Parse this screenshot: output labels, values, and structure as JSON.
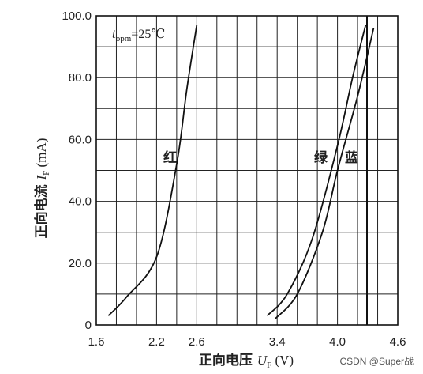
{
  "chart_data": {
    "type": "line",
    "xlabel": {
      "prefix": "正向电压 ",
      "symbol": "U",
      "sub": "F",
      "suffix": " (V)"
    },
    "ylabel": {
      "prefix": "正向电流 ",
      "symbol": "I",
      "sub": "F",
      "suffix": " (mA)"
    },
    "annotation": {
      "symbol": "t",
      "sub": "opm",
      "rest": "=25℃"
    },
    "xlim": [
      1.6,
      4.6
    ],
    "ylim": [
      0,
      100
    ],
    "x_ticks": [
      1.6,
      2.2,
      2.6,
      3.4,
      4.0,
      4.6
    ],
    "x_tick_labels": [
      "1.6",
      "2.2",
      "2.6",
      "3.4",
      "4.0",
      "4.6"
    ],
    "y_ticks": [
      0,
      20,
      40,
      60,
      80,
      100
    ],
    "y_tick_labels": [
      "0",
      "20.0",
      "40.0",
      "60.0",
      "80.0",
      "100.0"
    ],
    "grid": true,
    "series": [
      {
        "name": "红",
        "x": [
          1.72,
          1.9,
          2.2,
          2.4,
          2.5,
          2.6
        ],
        "y": [
          3,
          9,
          22,
          52,
          76,
          97
        ]
      },
      {
        "name": "绿",
        "x": [
          3.3,
          3.5,
          3.75,
          4.0,
          4.15,
          4.28
        ],
        "y": [
          3,
          10,
          28,
          58,
          80,
          97
        ]
      },
      {
        "name": "蓝",
        "x": [
          3.38,
          3.6,
          3.85,
          4.0,
          4.2,
          4.36
        ],
        "y": [
          2,
          10,
          30,
          50,
          74,
          96
        ]
      }
    ],
    "series_colors": [
      "#111111",
      "#111111",
      "#111111"
    ]
  },
  "watermark": "CSDN @Super战"
}
